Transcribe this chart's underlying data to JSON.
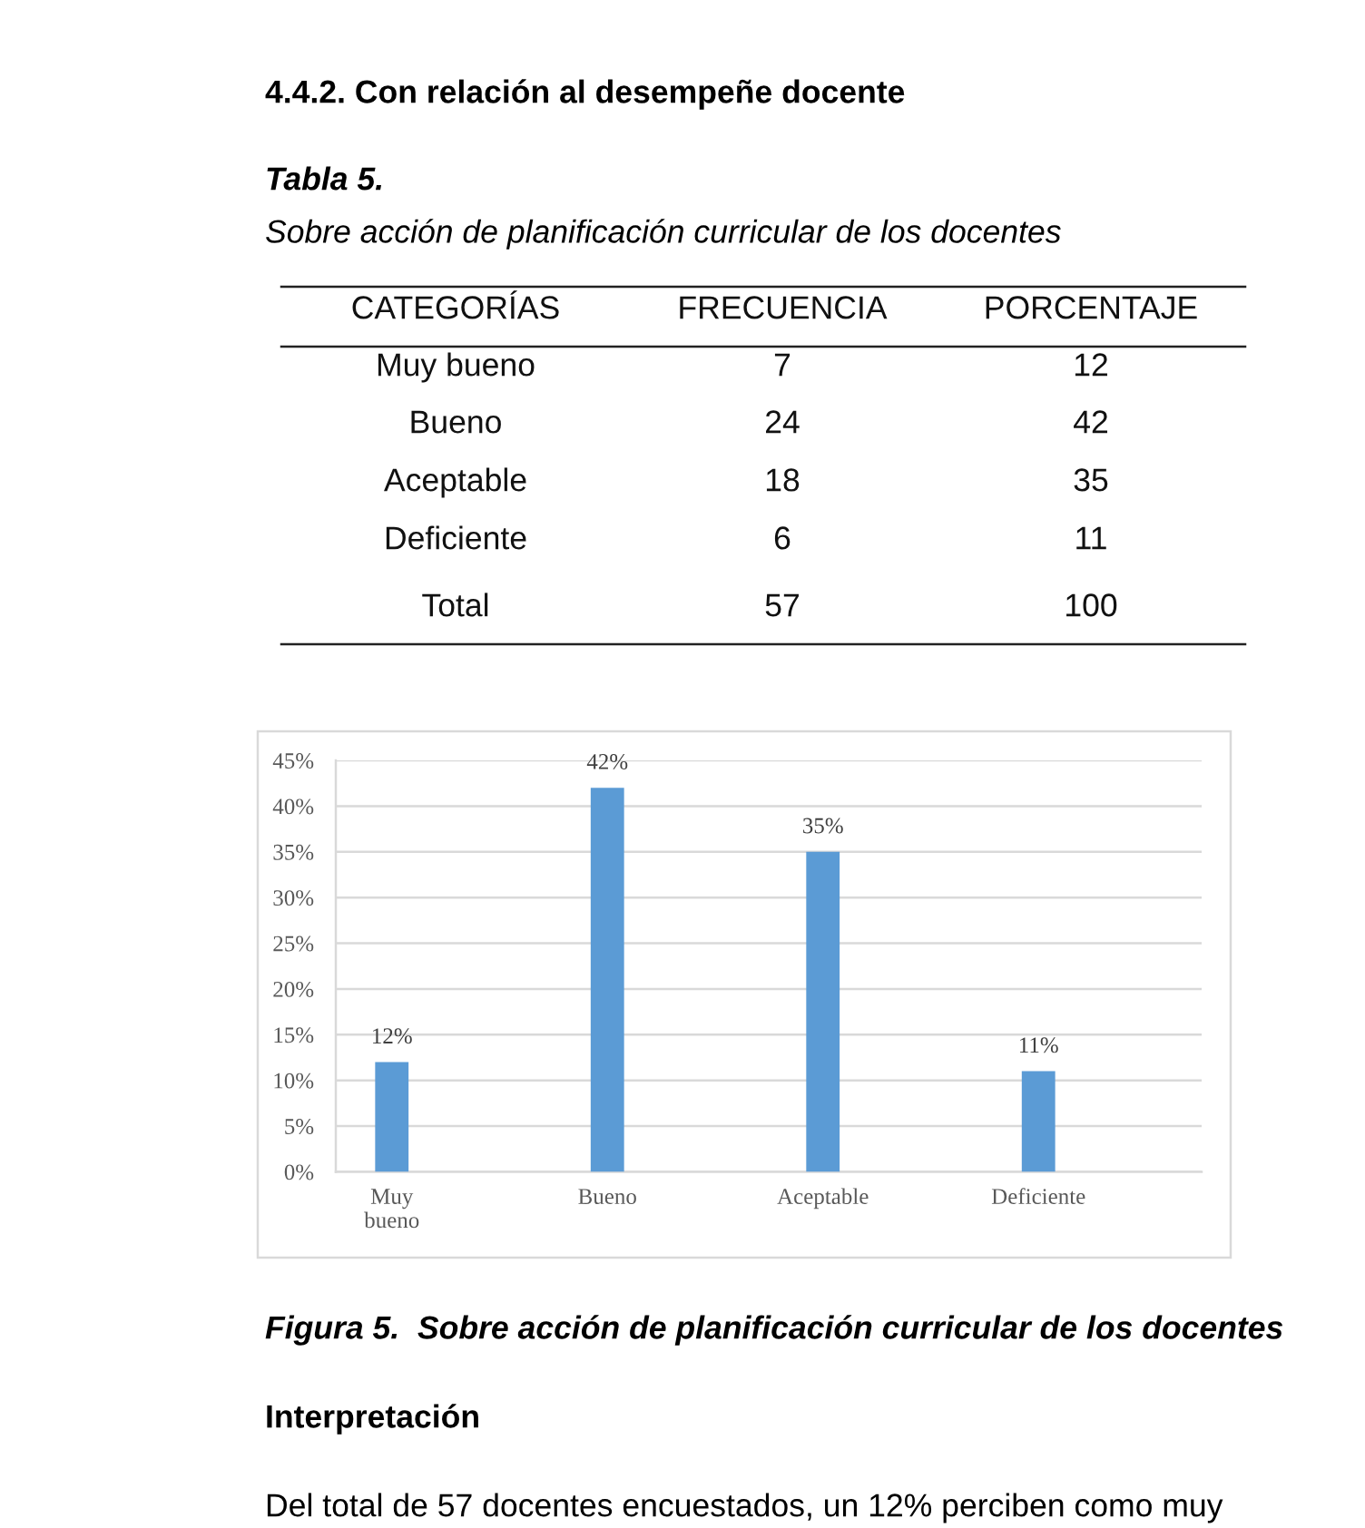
{
  "chart_data": [
    {
      "type": "other",
      "title": "4.4.2. Con relación al desempeñe docente",
      "subtitle": "Tabla 5.",
      "annotations": [
        "Sobre acción de planificación curricular de los docentes",
        "CATEGORÍAS",
        "FRECUENCIA",
        "PORCENTAJE",
        "Muy bueno",
        "7",
        "12",
        "Bueno",
        "24",
        "42",
        "Aceptable",
        "18",
        "35",
        "Deficiente",
        "6",
        "11",
        "Total",
        "57",
        "100"
      ]
    },
    {
      "type": "bar",
      "categories": [
        "Muy\nbueno",
        "Bueno",
        "Aceptable",
        "Deficiente"
      ],
      "values": [
        12,
        42,
        35,
        11
      ],
      "color": "#5b9bd5",
      "value_labels": [
        "12%",
        "42%",
        "35%",
        "11%"
      ],
      "ylim": [
        0,
        45
      ],
      "yticks": [
        {
          "value": 0,
          "label": "0%"
        },
        {
          "value": 5,
          "label": "5%"
        },
        {
          "value": 10,
          "label": "10%"
        },
        {
          "value": 15,
          "label": "15%"
        },
        {
          "value": 20,
          "label": "20%"
        },
        {
          "value": 25,
          "label": "25%"
        },
        {
          "value": 30,
          "label": "30%"
        },
        {
          "value": 35,
          "label": "35%"
        },
        {
          "value": 40,
          "label": "40%"
        },
        {
          "value": 45,
          "label": "45%"
        }
      ],
      "grid": "y",
      "annotations": [
        "Figura 5.  Sobre acción de planificación curricular de los docentes"
      ]
    },
    {
      "type": "other",
      "title": "Interpretación",
      "annotations": [
        "Del total de 57 docentes encuestados, un 12% perciben como muy"
      ]
    }
  ]
}
